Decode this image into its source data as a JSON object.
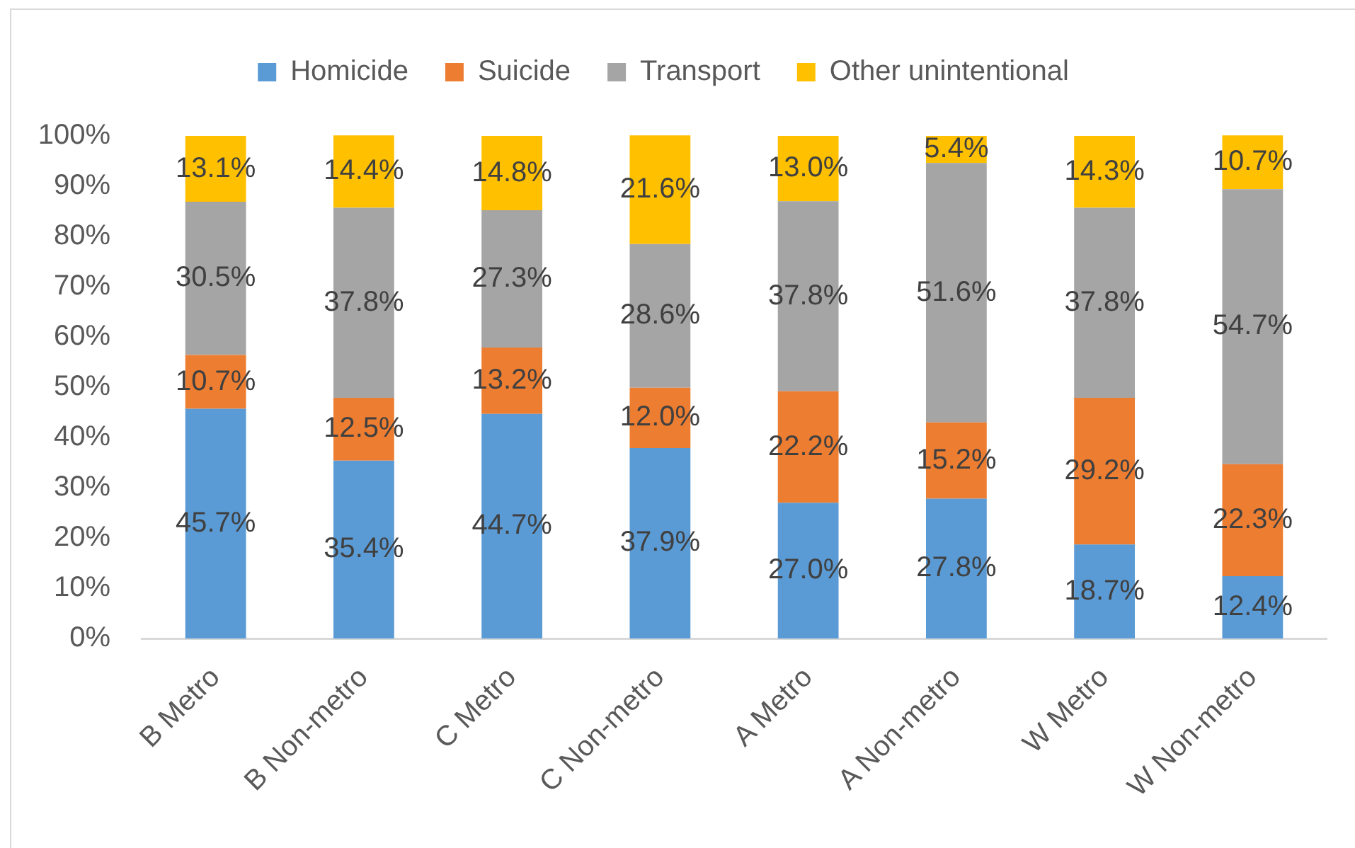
{
  "chart_data": {
    "type": "bar",
    "stacked": true,
    "legend": "top",
    "grid": false,
    "categories": [
      "B Metro",
      "B Non-metro",
      "C Metro",
      "C Non-metro",
      "A Metro",
      "A Non-metro",
      "W Metro",
      "W Non-metro"
    ],
    "ylim": [
      0,
      100
    ],
    "yticks": [
      {
        "value": 0,
        "label": "0%"
      },
      {
        "value": 10,
        "label": "10%"
      },
      {
        "value": 20,
        "label": "20%"
      },
      {
        "value": 30,
        "label": "30%"
      },
      {
        "value": 40,
        "label": "40%"
      },
      {
        "value": 50,
        "label": "50%"
      },
      {
        "value": 60,
        "label": "60%"
      },
      {
        "value": 70,
        "label": "70%"
      },
      {
        "value": 80,
        "label": "80%"
      },
      {
        "value": 90,
        "label": "90%"
      },
      {
        "value": 100,
        "label": "100%"
      }
    ],
    "series": [
      {
        "name": "Homicide",
        "color": "#5b9bd5",
        "values": [
          45.7,
          35.4,
          44.7,
          37.9,
          27.0,
          27.8,
          18.7,
          12.4
        ],
        "value_labels": [
          "45.7%",
          "35.4%",
          "44.7%",
          "37.9%",
          "27.0%",
          "27.8%",
          "18.7%",
          "12.4%"
        ]
      },
      {
        "name": "Suicide",
        "color": "#ed7d31",
        "values": [
          10.7,
          12.5,
          13.2,
          12.0,
          22.2,
          15.2,
          29.2,
          22.3
        ],
        "value_labels": [
          "10.7%",
          "12.5%",
          "13.2%",
          "12.0%",
          "22.2%",
          "15.2%",
          "29.2%",
          "22.3%"
        ]
      },
      {
        "name": "Transport",
        "color": "#a5a5a5",
        "values": [
          30.5,
          37.8,
          27.3,
          28.6,
          37.8,
          51.6,
          37.8,
          54.7
        ],
        "value_labels": [
          "30.5%",
          "37.8%",
          "27.3%",
          "28.6%",
          "37.8%",
          "51.6%",
          "37.8%",
          "54.7%"
        ]
      },
      {
        "name": "Other unintentional",
        "color": "#ffc000",
        "values": [
          13.1,
          14.4,
          14.8,
          21.6,
          13.0,
          5.4,
          14.3,
          10.7
        ],
        "value_labels": [
          "13.1%",
          "14.4%",
          "14.8%",
          "21.6%",
          "13.0%",
          "5.4%",
          "14.3%",
          "10.7%"
        ]
      }
    ]
  }
}
